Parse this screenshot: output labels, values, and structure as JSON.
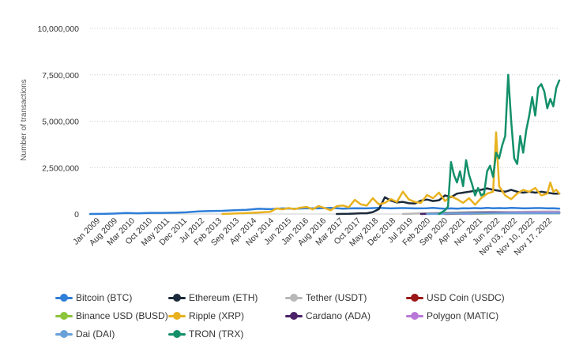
{
  "chart_data": {
    "type": "line",
    "ylabel": "Number of transactions",
    "ylim": [
      0,
      10000000
    ],
    "y_ticks": [
      "0",
      "2,500,000",
      "5,000,000",
      "7,500,000",
      "10,000,000"
    ],
    "x_ticks": [
      "Jan 2009",
      "Aug 2009",
      "Mar 2010",
      "Oct 2010",
      "May 2011",
      "Dec 2011",
      "Jul 2012",
      "Feb 2013",
      "Sep 2013",
      "Apr 2014",
      "Nov 2014",
      "Jun 2015",
      "Jan 2016",
      "Aug 2016",
      "Mar 2017",
      "Oct 2017",
      "May 2018",
      "Dec 2018",
      "Jul 2019",
      "Feb 2020",
      "Sep 2020",
      "Apr 2021",
      "Nov 2021",
      "Jun 2022",
      "Nov 03, 2022",
      "Nov 10, 2022",
      "Nov 17, 2022"
    ],
    "grid": true,
    "legend_position": "bottom",
    "series": [
      {
        "name": "Bitcoin (BTC)",
        "color": "#2f7ed8",
        "values": [
          [
            0,
            1000
          ],
          [
            4,
            5000
          ],
          [
            8,
            20000
          ],
          [
            12,
            50000
          ],
          [
            16,
            40000
          ],
          [
            20,
            60000
          ],
          [
            24,
            60000
          ],
          [
            28,
            70000
          ],
          [
            32,
            90000
          ],
          [
            36,
            140000
          ],
          [
            40,
            160000
          ],
          [
            44,
            170000
          ],
          [
            48,
            200000
          ],
          [
            52,
            220000
          ],
          [
            56,
            280000
          ],
          [
            60,
            260000
          ],
          [
            64,
            300000
          ],
          [
            68,
            280000
          ],
          [
            72,
            310000
          ],
          [
            76,
            300000
          ],
          [
            80,
            330000
          ],
          [
            84,
            290000
          ],
          [
            88,
            310000
          ],
          [
            92,
            300000
          ],
          [
            96,
            330000
          ],
          [
            100,
            300000
          ],
          [
            104,
            320000
          ],
          [
            108,
            300000
          ],
          [
            112,
            310000
          ],
          [
            114,
            330000
          ],
          [
            116,
            300000
          ],
          [
            118,
            280000
          ],
          [
            120,
            300000
          ],
          [
            122,
            290000
          ],
          [
            124,
            310000
          ],
          [
            126,
            300000
          ],
          [
            128,
            320000
          ],
          [
            130,
            300000
          ],
          [
            132,
            330000
          ],
          [
            134,
            310000
          ],
          [
            136,
            320000
          ],
          [
            138,
            310000
          ],
          [
            140,
            330000
          ],
          [
            142,
            320000
          ],
          [
            144,
            300000
          ],
          [
            146,
            310000
          ],
          [
            148,
            320000
          ],
          [
            150,
            320000
          ],
          [
            152,
            300000
          ],
          [
            154,
            310000
          ],
          [
            156,
            290000
          ]
        ]
      },
      {
        "name": "Ethereum (ETH)",
        "color": "#1b2a3a",
        "values": [
          [
            82,
            0
          ],
          [
            86,
            10000
          ],
          [
            88,
            20000
          ],
          [
            90,
            40000
          ],
          [
            92,
            40000
          ],
          [
            94,
            100000
          ],
          [
            96,
            260000
          ],
          [
            98,
            900000
          ],
          [
            100,
            720000
          ],
          [
            102,
            620000
          ],
          [
            104,
            650000
          ],
          [
            106,
            580000
          ],
          [
            108,
            560000
          ],
          [
            110,
            720000
          ],
          [
            112,
            780000
          ],
          [
            114,
            700000
          ],
          [
            116,
            740000
          ],
          [
            118,
            1000000
          ],
          [
            120,
            900000
          ],
          [
            122,
            1100000
          ],
          [
            124,
            1150000
          ],
          [
            126,
            1200000
          ],
          [
            128,
            1250000
          ],
          [
            130,
            1300000
          ],
          [
            132,
            1380000
          ],
          [
            134,
            1300000
          ],
          [
            136,
            1250000
          ],
          [
            138,
            1200000
          ],
          [
            140,
            1300000
          ],
          [
            142,
            1200000
          ],
          [
            144,
            1150000
          ],
          [
            146,
            1200000
          ],
          [
            148,
            1150000
          ],
          [
            150,
            1200000
          ],
          [
            152,
            1150000
          ],
          [
            154,
            1100000
          ],
          [
            156,
            1100000
          ]
        ]
      },
      {
        "name": "Tether (USDT)",
        "color": "#b8b8b8",
        "values": [
          [
            104,
            0
          ],
          [
            110,
            30000
          ],
          [
            116,
            60000
          ],
          [
            120,
            80000
          ],
          [
            126,
            100000
          ],
          [
            132,
            110000
          ],
          [
            138,
            120000
          ],
          [
            144,
            120000
          ],
          [
            150,
            130000
          ],
          [
            156,
            130000
          ]
        ]
      },
      {
        "name": "USD Coin (USDC)",
        "color": "#9b1818",
        "values": [
          [
            118,
            0
          ],
          [
            124,
            20000
          ],
          [
            130,
            40000
          ],
          [
            136,
            60000
          ],
          [
            142,
            70000
          ],
          [
            148,
            70000
          ],
          [
            156,
            60000
          ]
        ]
      },
      {
        "name": "Binance USD (BUSD)",
        "color": "#8cc43a",
        "values": [
          [
            126,
            0
          ],
          [
            132,
            20000
          ],
          [
            140,
            40000
          ],
          [
            148,
            40000
          ],
          [
            156,
            30000
          ]
        ]
      },
      {
        "name": "Ripple (XRP)",
        "color": "#e8b220",
        "values": [
          [
            44,
            0
          ],
          [
            50,
            40000
          ],
          [
            56,
            80000
          ],
          [
            60,
            120000
          ],
          [
            62,
            300000
          ],
          [
            64,
            250000
          ],
          [
            66,
            320000
          ],
          [
            68,
            260000
          ],
          [
            70,
            340000
          ],
          [
            72,
            380000
          ],
          [
            74,
            250000
          ],
          [
            76,
            430000
          ],
          [
            78,
            320000
          ],
          [
            80,
            200000
          ],
          [
            82,
            420000
          ],
          [
            84,
            460000
          ],
          [
            86,
            360000
          ],
          [
            88,
            760000
          ],
          [
            90,
            520000
          ],
          [
            92,
            450000
          ],
          [
            94,
            850000
          ],
          [
            96,
            520000
          ],
          [
            98,
            600000
          ],
          [
            100,
            800000
          ],
          [
            102,
            650000
          ],
          [
            104,
            1200000
          ],
          [
            106,
            780000
          ],
          [
            108,
            650000
          ],
          [
            110,
            600000
          ],
          [
            112,
            1020000
          ],
          [
            114,
            850000
          ],
          [
            116,
            1150000
          ],
          [
            118,
            700000
          ],
          [
            120,
            950000
          ],
          [
            122,
            800000
          ],
          [
            124,
            600000
          ],
          [
            126,
            850000
          ],
          [
            128,
            500000
          ],
          [
            130,
            850000
          ],
          [
            132,
            1100000
          ],
          [
            134,
            1200000
          ],
          [
            135,
            4400000
          ],
          [
            136,
            1500000
          ],
          [
            138,
            1000000
          ],
          [
            140,
            800000
          ],
          [
            142,
            1100000
          ],
          [
            144,
            1300000
          ],
          [
            146,
            1200000
          ],
          [
            148,
            1400000
          ],
          [
            150,
            1000000
          ],
          [
            152,
            1100000
          ],
          [
            153,
            1700000
          ],
          [
            154,
            1200000
          ],
          [
            155,
            1300000
          ],
          [
            156,
            1100000
          ]
        ]
      },
      {
        "name": "Cardano (ADA)",
        "color": "#4b2268",
        "values": [
          [
            110,
            0
          ],
          [
            116,
            20000
          ],
          [
            122,
            40000
          ],
          [
            128,
            60000
          ],
          [
            134,
            80000
          ],
          [
            140,
            70000
          ],
          [
            146,
            80000
          ],
          [
            152,
            70000
          ],
          [
            156,
            70000
          ]
        ]
      },
      {
        "name": "Polygon (MATIC)",
        "color": "#b878d8",
        "values": [
          [
            124,
            0
          ],
          [
            130,
            30000
          ],
          [
            136,
            60000
          ],
          [
            142,
            80000
          ],
          [
            148,
            90000
          ],
          [
            156,
            90000
          ]
        ]
      },
      {
        "name": "Dai (DAI)",
        "color": "#6aa0d8",
        "values": [
          [
            112,
            0
          ],
          [
            120,
            20000
          ],
          [
            128,
            30000
          ],
          [
            136,
            40000
          ],
          [
            144,
            40000
          ],
          [
            152,
            40000
          ],
          [
            156,
            40000
          ]
        ]
      },
      {
        "name": "TRON (TRX)",
        "color": "#13906a",
        "values": [
          [
            116,
            0
          ],
          [
            118,
            200000
          ],
          [
            119,
            400000
          ],
          [
            120,
            2800000
          ],
          [
            121,
            2100000
          ],
          [
            122,
            1700000
          ],
          [
            123,
            2300000
          ],
          [
            124,
            1500000
          ],
          [
            125,
            2900000
          ],
          [
            126,
            2100000
          ],
          [
            127,
            1600000
          ],
          [
            128,
            1000000
          ],
          [
            129,
            1400000
          ],
          [
            130,
            1000000
          ],
          [
            131,
            1100000
          ],
          [
            132,
            2300000
          ],
          [
            133,
            2600000
          ],
          [
            134,
            2000000
          ],
          [
            135,
            3300000
          ],
          [
            136,
            3000000
          ],
          [
            137,
            3700000
          ],
          [
            138,
            4200000
          ],
          [
            139,
            7500000
          ],
          [
            140,
            5000000
          ],
          [
            141,
            3000000
          ],
          [
            142,
            2700000
          ],
          [
            143,
            4200000
          ],
          [
            144,
            3300000
          ],
          [
            145,
            4500000
          ],
          [
            146,
            5300000
          ],
          [
            147,
            6300000
          ],
          [
            148,
            5300000
          ],
          [
            149,
            6800000
          ],
          [
            150,
            7000000
          ],
          [
            151,
            6600000
          ],
          [
            152,
            5700000
          ],
          [
            153,
            6200000
          ],
          [
            154,
            5800000
          ],
          [
            155,
            6800000
          ],
          [
            156,
            7200000
          ]
        ]
      }
    ]
  }
}
